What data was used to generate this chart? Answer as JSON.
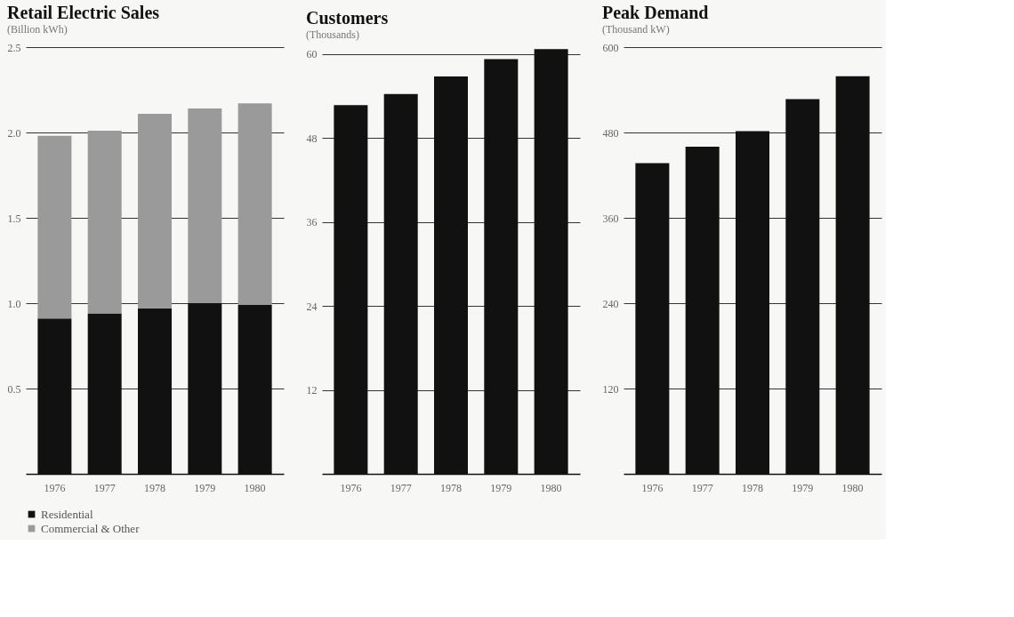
{
  "chart_data": [
    {
      "type": "bar",
      "title": "Retail Electric Sales",
      "subtitle": "(Billion kWh)",
      "categories": [
        "1976",
        "1977",
        "1978",
        "1979",
        "1980"
      ],
      "stacked": true,
      "legend": "bottom",
      "grid": "y",
      "ylim": [
        0,
        2.5
      ],
      "yticks": [
        0.5,
        {
          "value": 1,
          "label": "1.0"
        },
        1.5,
        {
          "value": 2,
          "label": "2.0"
        },
        2.5
      ],
      "series": [
        {
          "name": "Residential",
          "color": "#111111",
          "values": [
            0.91,
            0.94,
            0.97,
            1.0,
            0.99
          ]
        },
        {
          "name": "Commercial & Other",
          "color": "#9a9a9a",
          "values": [
            1.07,
            1.07,
            1.14,
            1.14,
            1.18
          ]
        }
      ]
    },
    {
      "type": "bar",
      "title": "Customers",
      "subtitle": "(Thousands)",
      "categories": [
        "1976",
        "1977",
        "1978",
        "1979",
        "1980"
      ],
      "grid": "y",
      "ylim": [
        0,
        61
      ],
      "yticks": [
        12,
        24,
        36,
        48,
        60
      ],
      "color": "#111111",
      "values": [
        52.7,
        54.3,
        56.8,
        59.3,
        60.7
      ]
    },
    {
      "type": "bar",
      "title": "Peak Demand",
      "subtitle": "(Thousand kW)",
      "categories": [
        "1976",
        "1977",
        "1978",
        "1979",
        "1980"
      ],
      "grid": "y",
      "ylim": [
        0,
        600
      ],
      "yticks": [
        120,
        240,
        360,
        480,
        600
      ],
      "color": "#111111",
      "values": [
        437,
        460,
        482,
        527,
        559
      ]
    }
  ]
}
